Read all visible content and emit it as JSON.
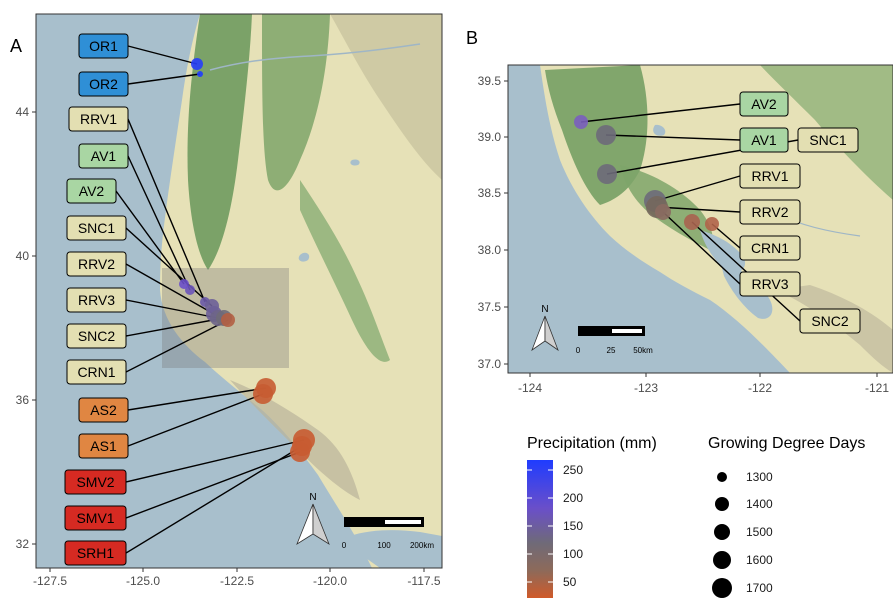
{
  "panel_a": {
    "letter": "A",
    "x_ticks": [
      "-127.5",
      "-125.0",
      "-122.5",
      "-120.0",
      "-117.5"
    ],
    "y_ticks": [
      "44",
      "40",
      "36",
      "32"
    ],
    "scale": {
      "labels": [
        "0",
        "100",
        "200km"
      ]
    },
    "north": "N",
    "sites": [
      {
        "name": "OR1",
        "fill": "#2f8fd6",
        "precip": 240
      },
      {
        "name": "OR2",
        "fill": "#2f8fd6",
        "precip": 250
      },
      {
        "name": "RRV1",
        "fill": "#e3dfb2",
        "precip": 130
      },
      {
        "name": "AV1",
        "fill": "#a9d6a3",
        "precip": 140
      },
      {
        "name": "AV2",
        "fill": "#a9d6a3",
        "precip": 150
      },
      {
        "name": "SNC1",
        "fill": "#e3dfb2",
        "precip": 120
      },
      {
        "name": "RRV2",
        "fill": "#e3dfb2",
        "precip": 120
      },
      {
        "name": "RRV3",
        "fill": "#e3dfb2",
        "precip": 110
      },
      {
        "name": "SNC2",
        "fill": "#e3dfb2",
        "precip": 100
      },
      {
        "name": "CRN1",
        "fill": "#e3dfb2",
        "precip": 60
      },
      {
        "name": "AS2",
        "fill": "#e08642",
        "precip": 40
      },
      {
        "name": "AS1",
        "fill": "#e08642",
        "precip": 40
      },
      {
        "name": "SMV2",
        "fill": "#d62a22",
        "precip": 35
      },
      {
        "name": "SMV1",
        "fill": "#d62a22",
        "precip": 35
      },
      {
        "name": "SRH1",
        "fill": "#d62a22",
        "precip": 35
      }
    ]
  },
  "panel_b": {
    "letter": "B",
    "x_ticks": [
      "-124",
      "-123",
      "-122",
      "-121"
    ],
    "y_ticks": [
      "39.5",
      "39.0",
      "38.5",
      "38.0",
      "37.5",
      "37.0"
    ],
    "scale": {
      "labels": [
        "0",
        "25",
        "50km"
      ]
    },
    "north": "N",
    "sites": [
      {
        "name": "AV2",
        "fill": "#a9d6a3"
      },
      {
        "name": "AV1",
        "fill": "#a9d6a3"
      },
      {
        "name": "SNC1",
        "fill": "#e3dfb2"
      },
      {
        "name": "RRV1",
        "fill": "#e3dfb2"
      },
      {
        "name": "RRV2",
        "fill": "#e3dfb2"
      },
      {
        "name": "CRN1",
        "fill": "#e3dfb2"
      },
      {
        "name": "RRV3",
        "fill": "#e3dfb2"
      },
      {
        "name": "SNC2",
        "fill": "#e3dfb2"
      }
    ]
  },
  "legend_precip": {
    "title": "Precipitation (mm)",
    "ticks": [
      "250",
      "200",
      "150",
      "100",
      "50"
    ]
  },
  "legend_gdd": {
    "title": "Growing Degree Days",
    "entries": [
      "1300",
      "1400",
      "1500",
      "1600",
      "1700"
    ]
  },
  "colors": {
    "water": "#a8bfcc",
    "land": "#e6e1b7",
    "forest": "#6f9b5f",
    "mountain": "#b9b39a",
    "frame": "#333333"
  }
}
